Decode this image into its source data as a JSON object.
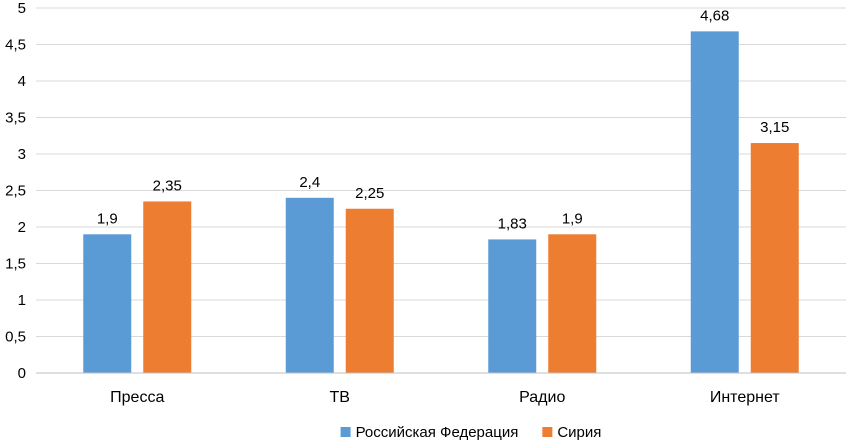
{
  "chart_data": {
    "type": "bar",
    "title": "",
    "xlabel": "",
    "ylabel": "",
    "categories": [
      "Пресса",
      "ТВ",
      "Радио",
      "Интернет"
    ],
    "series": [
      {
        "name": "Российская Федерация",
        "color": "#5b9bd5",
        "values": [
          1.9,
          2.4,
          1.83,
          4.68
        ],
        "labels": [
          "1,9",
          "2,4",
          "1,83",
          "4,68"
        ]
      },
      {
        "name": "Сирия",
        "color": "#ed7d31",
        "values": [
          2.35,
          2.25,
          1.9,
          3.15
        ],
        "labels": [
          "2,35",
          "2,25",
          "1,9",
          "3,15"
        ]
      }
    ],
    "ylim": [
      0,
      5
    ],
    "yticks": [
      0,
      0.5,
      1,
      1.5,
      2,
      2.5,
      3,
      3.5,
      4,
      4.5,
      5
    ],
    "ytick_labels": [
      "0",
      "0,5",
      "1",
      "1,5",
      "2",
      "2,5",
      "3",
      "3,5",
      "4",
      "4,5",
      "5"
    ],
    "grid": true,
    "legend": "bottom"
  }
}
